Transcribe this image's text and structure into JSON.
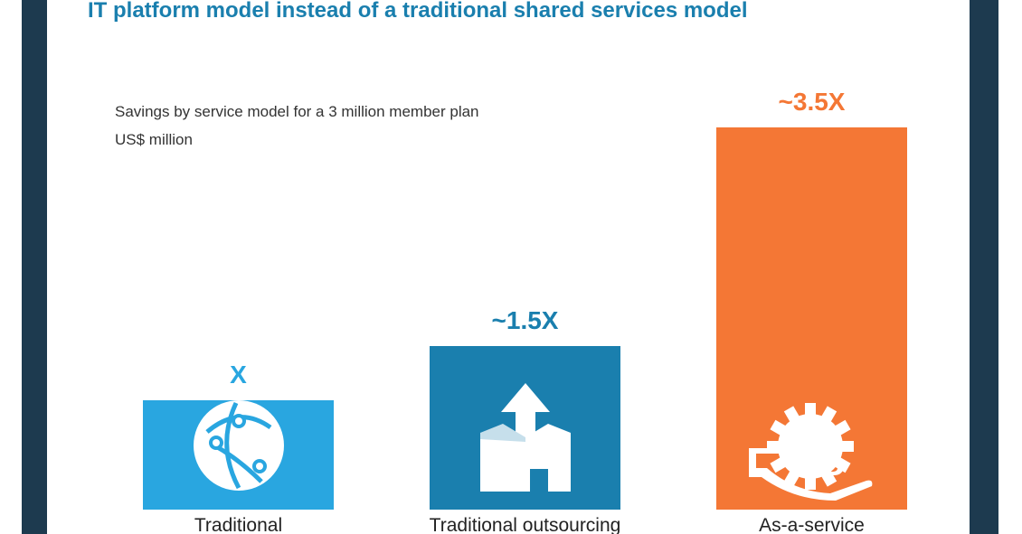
{
  "header": {
    "title": "IT platform model instead of a traditional shared services model"
  },
  "chart_data": {
    "type": "bar",
    "title": "Savings by service model for a 3 million member plan",
    "subtitle": "US$ million",
    "categories": [
      "Traditional",
      "Traditional outsourcing",
      "As-a-service"
    ],
    "values": [
      1,
      1.5,
      3.5
    ],
    "data_labels": [
      "X",
      "~1.5X",
      "~3.5X"
    ],
    "ylim": [
      0,
      3.5
    ],
    "grid": false,
    "legend": "none",
    "colors": [
      "#29a6e0",
      "#1a7fae",
      "#f47735"
    ],
    "icons": [
      "network-globe-icon",
      "box-upload-icon",
      "hand-gear-icon"
    ]
  }
}
